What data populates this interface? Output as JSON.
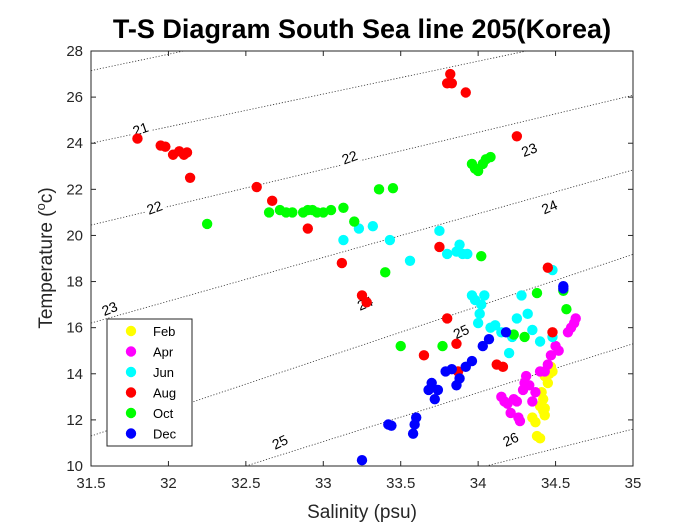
{
  "chart_data": {
    "type": "scatter",
    "title": "T-S Diagram South Sea line 205(Korea)",
    "xlabel": "Salinity (psu)",
    "ylabel_main": "Temperature (",
    "ylabel_sup": "o",
    "ylabel_end": "c)",
    "xlim": [
      31.5,
      35
    ],
    "ylim": [
      10,
      28
    ],
    "xticks": [
      "31.5",
      "32",
      "32.5",
      "33",
      "33.5",
      "34",
      "34.5",
      "35"
    ],
    "yticks": [
      "10",
      "12",
      "14",
      "16",
      "18",
      "20",
      "22",
      "24",
      "26",
      "28"
    ],
    "legend_position": "bottom-left",
    "series": [
      {
        "name": "Feb",
        "color": "#ffff00",
        "points": [
          [
            34.35,
            12.1
          ],
          [
            34.37,
            11.9
          ],
          [
            34.38,
            11.3
          ],
          [
            34.4,
            11.2
          ],
          [
            34.4,
            12.6
          ],
          [
            34.42,
            12.4
          ],
          [
            34.42,
            12.9
          ],
          [
            34.43,
            12.2
          ],
          [
            34.43,
            12.5
          ],
          [
            34.41,
            13.2
          ],
          [
            34.43,
            13.9
          ],
          [
            34.45,
            13.6
          ],
          [
            34.46,
            14.0
          ],
          [
            34.47,
            14.3
          ],
          [
            34.48,
            14.1
          ]
        ]
      },
      {
        "name": "Apr",
        "color": "#ff00ff",
        "points": [
          [
            34.15,
            13.0
          ],
          [
            34.17,
            12.8
          ],
          [
            34.19,
            12.7
          ],
          [
            34.21,
            12.3
          ],
          [
            34.23,
            12.9
          ],
          [
            34.25,
            12.8
          ],
          [
            34.26,
            12.1
          ],
          [
            34.27,
            11.95
          ],
          [
            34.29,
            13.3
          ],
          [
            34.3,
            13.6
          ],
          [
            34.31,
            13.9
          ],
          [
            34.33,
            13.5
          ],
          [
            34.35,
            12.8
          ],
          [
            34.37,
            13.2
          ],
          [
            34.4,
            14.1
          ],
          [
            34.43,
            14.1
          ],
          [
            34.45,
            14.4
          ],
          [
            34.47,
            14.8
          ],
          [
            34.5,
            15.2
          ],
          [
            34.52,
            15.0
          ],
          [
            34.58,
            15.8
          ],
          [
            34.6,
            16.0
          ],
          [
            34.62,
            16.2
          ],
          [
            34.63,
            16.4
          ]
        ]
      },
      {
        "name": "Jun",
        "color": "#00ffff",
        "points": [
          [
            33.13,
            19.8
          ],
          [
            33.23,
            20.3
          ],
          [
            33.32,
            20.4
          ],
          [
            33.43,
            19.8
          ],
          [
            33.56,
            18.9
          ],
          [
            33.75,
            20.2
          ],
          [
            33.8,
            19.2
          ],
          [
            33.86,
            19.3
          ],
          [
            33.88,
            19.6
          ],
          [
            33.9,
            19.2
          ],
          [
            33.93,
            19.2
          ],
          [
            33.96,
            17.4
          ],
          [
            33.98,
            17.2
          ],
          [
            34.0,
            16.2
          ],
          [
            34.01,
            16.6
          ],
          [
            34.02,
            17.0
          ],
          [
            34.04,
            17.4
          ],
          [
            34.08,
            16.0
          ],
          [
            34.11,
            16.1
          ],
          [
            34.15,
            15.8
          ],
          [
            34.2,
            14.9
          ],
          [
            34.22,
            15.6
          ],
          [
            34.25,
            16.4
          ],
          [
            34.28,
            17.4
          ],
          [
            34.32,
            16.6
          ],
          [
            34.35,
            15.9
          ],
          [
            34.4,
            15.4
          ],
          [
            34.48,
            15.6
          ],
          [
            34.48,
            18.5
          ]
        ]
      },
      {
        "name": "Aug",
        "color": "#ff0000",
        "points": [
          [
            31.8,
            24.2
          ],
          [
            31.95,
            23.9
          ],
          [
            31.98,
            23.85
          ],
          [
            32.03,
            23.5
          ],
          [
            32.07,
            23.65
          ],
          [
            32.1,
            23.5
          ],
          [
            32.12,
            23.6
          ],
          [
            32.14,
            22.5
          ],
          [
            32.57,
            22.1
          ],
          [
            32.67,
            21.5
          ],
          [
            32.9,
            20.3
          ],
          [
            33.12,
            18.8
          ],
          [
            33.25,
            17.4
          ],
          [
            33.28,
            17.1
          ],
          [
            33.65,
            14.8
          ],
          [
            33.75,
            19.5
          ],
          [
            33.8,
            16.4
          ],
          [
            33.8,
            26.6
          ],
          [
            33.82,
            27.0
          ],
          [
            33.83,
            26.6
          ],
          [
            33.86,
            15.3
          ],
          [
            33.87,
            14.1
          ],
          [
            33.92,
            26.2
          ],
          [
            34.12,
            14.4
          ],
          [
            34.16,
            14.3
          ],
          [
            34.25,
            24.3
          ],
          [
            34.45,
            18.6
          ],
          [
            34.48,
            15.8
          ]
        ]
      },
      {
        "name": "Oct",
        "color": "#00ff00",
        "points": [
          [
            32.25,
            20.5
          ],
          [
            32.65,
            21.0
          ],
          [
            32.72,
            21.1
          ],
          [
            32.76,
            21.0
          ],
          [
            32.8,
            21.0
          ],
          [
            32.87,
            21.0
          ],
          [
            32.9,
            21.1
          ],
          [
            32.93,
            21.1
          ],
          [
            32.96,
            21.0
          ],
          [
            33.0,
            21.0
          ],
          [
            33.05,
            21.1
          ],
          [
            33.13,
            21.2
          ],
          [
            33.2,
            20.6
          ],
          [
            33.36,
            22.0
          ],
          [
            33.4,
            18.4
          ],
          [
            33.45,
            22.05
          ],
          [
            33.5,
            15.2
          ],
          [
            33.77,
            15.2
          ],
          [
            33.96,
            23.1
          ],
          [
            33.98,
            22.9
          ],
          [
            34.0,
            22.8
          ],
          [
            34.03,
            23.1
          ],
          [
            34.05,
            23.3
          ],
          [
            34.08,
            23.4
          ],
          [
            34.02,
            19.1
          ],
          [
            34.38,
            17.5
          ],
          [
            34.55,
            17.6
          ],
          [
            34.57,
            16.8
          ],
          [
            34.23,
            15.7
          ],
          [
            34.3,
            15.6
          ]
        ]
      },
      {
        "name": "Dec",
        "color": "#0000ff",
        "points": [
          [
            33.25,
            10.25
          ],
          [
            33.42,
            11.8
          ],
          [
            33.44,
            11.75
          ],
          [
            33.58,
            11.4
          ],
          [
            33.59,
            11.8
          ],
          [
            33.6,
            12.1
          ],
          [
            33.68,
            13.3
          ],
          [
            33.7,
            13.6
          ],
          [
            33.72,
            12.9
          ],
          [
            33.74,
            13.3
          ],
          [
            33.79,
            14.1
          ],
          [
            33.83,
            14.2
          ],
          [
            33.86,
            13.5
          ],
          [
            33.88,
            13.8
          ],
          [
            33.92,
            14.3
          ],
          [
            33.96,
            14.55
          ],
          [
            34.03,
            15.2
          ],
          [
            34.07,
            15.5
          ],
          [
            34.18,
            15.8
          ],
          [
            34.55,
            17.7
          ],
          [
            34.55,
            17.8
          ]
        ]
      }
    ],
    "contours": [
      {
        "label": "21",
        "points": [
          [
            31.5,
            24.0
          ],
          [
            35.0,
            28.98
          ]
        ],
        "label_at": [
          31.82,
          24.62
        ],
        "angle": -19
      },
      {
        "label": "22",
        "points": [
          [
            31.5,
            20.45
          ],
          [
            35.0,
            26.08
          ]
        ],
        "label_at": [
          33.17,
          23.39
        ],
        "angle": -20
      },
      {
        "label": "22",
        "points": [
          [
            31.5,
            27.15
          ],
          [
            32.1,
            28.0
          ]
        ],
        "label_at": [
          31.91,
          21.21
        ],
        "angle": -20
      },
      {
        "label": "23",
        "points": [
          [
            31.5,
            16.2
          ],
          [
            35.0,
            22.84
          ]
        ],
        "label_at": [
          34.33,
          23.72
        ],
        "angle": -21
      },
      {
        "label": "23",
        "points": [
          [
            31.5,
            16.2
          ],
          [
            31.5,
            16.2
          ]
        ],
        "label_at": [
          31.62,
          16.83
        ],
        "angle": -22
      },
      {
        "label": "24",
        "points": [
          [
            31.5,
            11.3
          ],
          [
            35.0,
            19.18
          ]
        ],
        "label_at": [
          34.46,
          21.24
        ],
        "angle": -23
      },
      {
        "label": "24",
        "points": [
          [
            31.5,
            11.3
          ],
          [
            31.5,
            11.3
          ]
        ],
        "label_at": [
          33.27,
          17.06
        ],
        "angle": -23
      },
      {
        "label": "25",
        "points": [
          [
            32.5,
            10.0
          ],
          [
            35.0,
            15.3
          ]
        ],
        "label_at": [
          32.72,
          11.04
        ],
        "angle": -25
      },
      {
        "label": "25",
        "points": [
          [
            32.5,
            10.0
          ],
          [
            32.5,
            10.0
          ]
        ],
        "label_at": [
          33.89,
          15.83
        ],
        "angle": -25
      },
      {
        "label": "26",
        "points": [
          [
            34.05,
            10.0
          ],
          [
            35.0,
            11.6
          ]
        ],
        "label_at": [
          34.21,
          11.16
        ],
        "angle": -24
      }
    ]
  }
}
